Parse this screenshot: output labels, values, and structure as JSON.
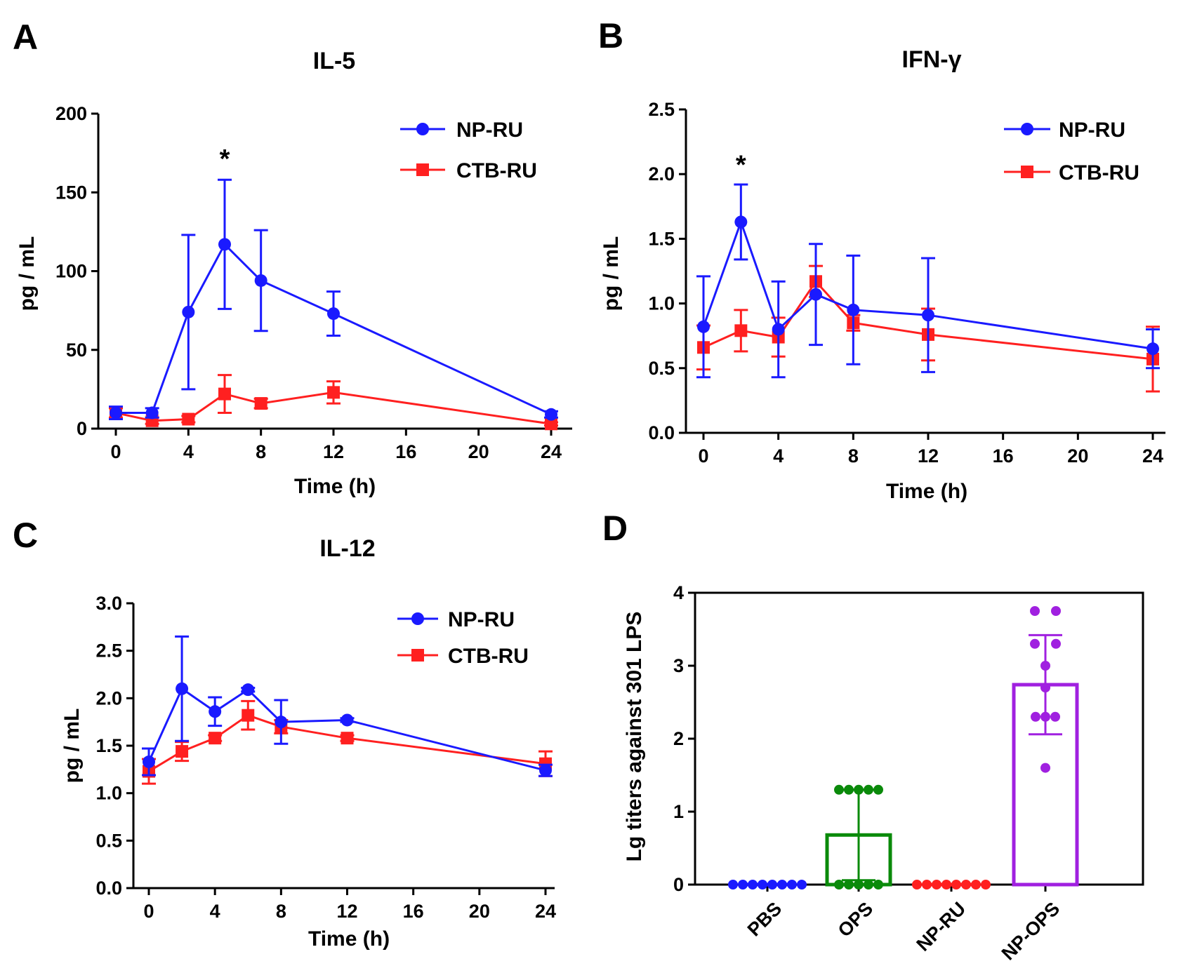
{
  "chart_data": [
    {
      "id": "A",
      "panel_label": "A",
      "type": "line",
      "title": "IL-5",
      "xlabel": "Time (h)",
      "ylabel": "pg / mL",
      "xlim": [
        0,
        24
      ],
      "ylim": [
        0,
        200
      ],
      "xticks": [
        0,
        4,
        8,
        12,
        16,
        20,
        24
      ],
      "yticks": [
        0,
        50,
        100,
        150,
        200
      ],
      "ytick_labels": [
        "0",
        "50",
        "100",
        "150",
        "200"
      ],
      "x": [
        0,
        2,
        4,
        6,
        8,
        12,
        24
      ],
      "series": [
        {
          "name": "NP-RU",
          "color": "#1a1aff",
          "marker": "circle",
          "values": [
            10,
            10,
            74,
            117,
            94,
            73,
            9
          ],
          "errors": [
            4,
            3,
            49,
            41,
            32,
            14,
            2
          ]
        },
        {
          "name": "CTB-RU",
          "color": "#ff2020",
          "marker": "square",
          "values": [
            10,
            5,
            6,
            22,
            16,
            23,
            3
          ],
          "errors": [
            3,
            2,
            2,
            12,
            3,
            7,
            1
          ]
        }
      ],
      "annotations": [
        {
          "text": "*",
          "x": 6,
          "y": 172
        }
      ],
      "legend_position": "top-right"
    },
    {
      "id": "B",
      "panel_label": "B",
      "type": "line",
      "title": "IFN-γ",
      "xlabel": "Time (h)",
      "ylabel": "pg / mL",
      "xlim": [
        0,
        24
      ],
      "ylim": [
        0,
        2.5
      ],
      "xticks": [
        0,
        4,
        8,
        12,
        16,
        20,
        24
      ],
      "yticks": [
        0,
        0.5,
        1.0,
        1.5,
        2.0,
        2.5
      ],
      "ytick_labels": [
        "0.0",
        "0.5",
        "1.0",
        "1.5",
        "2.0",
        "2.5"
      ],
      "x": [
        0,
        2,
        4,
        6,
        8,
        12,
        24
      ],
      "series": [
        {
          "name": "NP-RU",
          "color": "#1a1aff",
          "marker": "circle",
          "values": [
            0.82,
            1.63,
            0.8,
            1.07,
            0.95,
            0.91,
            0.65
          ],
          "errors": [
            0.39,
            0.29,
            0.37,
            0.39,
            0.42,
            0.44,
            0.15
          ]
        },
        {
          "name": "CTB-RU",
          "color": "#ff2020",
          "marker": "square",
          "values": [
            0.66,
            0.79,
            0.74,
            1.17,
            0.85,
            0.76,
            0.57
          ],
          "errors": [
            0.17,
            0.16,
            0.15,
            0.12,
            0.06,
            0.2,
            0.25
          ]
        }
      ],
      "annotations": [
        {
          "text": "*",
          "x": 2,
          "y": 2.08
        }
      ],
      "legend_position": "top-right"
    },
    {
      "id": "C",
      "panel_label": "C",
      "type": "line",
      "title": "IL-12",
      "xlabel": "Time (h)",
      "ylabel": "pg / mL",
      "xlim": [
        0,
        24
      ],
      "ylim": [
        0,
        3.0
      ],
      "xticks": [
        0,
        4,
        8,
        12,
        16,
        20,
        24
      ],
      "yticks": [
        0,
        0.5,
        1.0,
        1.5,
        2.0,
        2.5,
        3.0
      ],
      "ytick_labels": [
        "0.0",
        "0.5",
        "1.0",
        "1.5",
        "2.0",
        "2.5",
        "3.0"
      ],
      "x": [
        0,
        2,
        4,
        6,
        8,
        12,
        24
      ],
      "series": [
        {
          "name": "NP-RU",
          "color": "#1a1aff",
          "marker": "circle",
          "values": [
            1.33,
            2.1,
            1.86,
            2.09,
            1.75,
            1.77,
            1.24
          ],
          "errors": [
            0.14,
            0.55,
            0.15,
            0.02,
            0.23,
            0.02,
            0.06
          ]
        },
        {
          "name": "CTB-RU",
          "color": "#ff2020",
          "marker": "square",
          "values": [
            1.23,
            1.44,
            1.58,
            1.82,
            1.7,
            1.58,
            1.31
          ],
          "errors": [
            0.13,
            0.1,
            0.03,
            0.15,
            0.07,
            0.03,
            0.13
          ]
        }
      ],
      "annotations": [],
      "legend_position": "top-right"
    },
    {
      "id": "D",
      "panel_label": "D",
      "type": "bar",
      "title": "",
      "xlabel": "",
      "ylabel": "Lg titers against 301 LPS",
      "ylim": [
        0,
        4
      ],
      "yticks": [
        0,
        1,
        2,
        3,
        4
      ],
      "ytick_labels": [
        "0",
        "1",
        "2",
        "3",
        "4"
      ],
      "categories": [
        "PBS",
        "OPS",
        "NP-RU",
        "NP-OPS"
      ],
      "values": [
        0,
        0.68,
        0,
        2.74
      ],
      "errors": [
        0,
        0.62,
        0,
        0.68
      ],
      "colors": [
        "#1a1aff",
        "#0a8a0a",
        "#ff2020",
        "#a020e0"
      ],
      "points": [
        [
          0,
          0,
          0,
          0,
          0,
          0,
          0,
          0
        ],
        [
          1.3,
          1.3,
          1.3,
          1.3,
          1.3,
          0,
          0,
          0,
          0,
          0
        ],
        [
          0,
          0,
          0,
          0,
          0,
          0,
          0,
          0
        ],
        [
          3.75,
          3.75,
          3.3,
          3.3,
          3.0,
          2.7,
          2.3,
          2.3,
          2.3,
          1.6
        ]
      ]
    }
  ]
}
